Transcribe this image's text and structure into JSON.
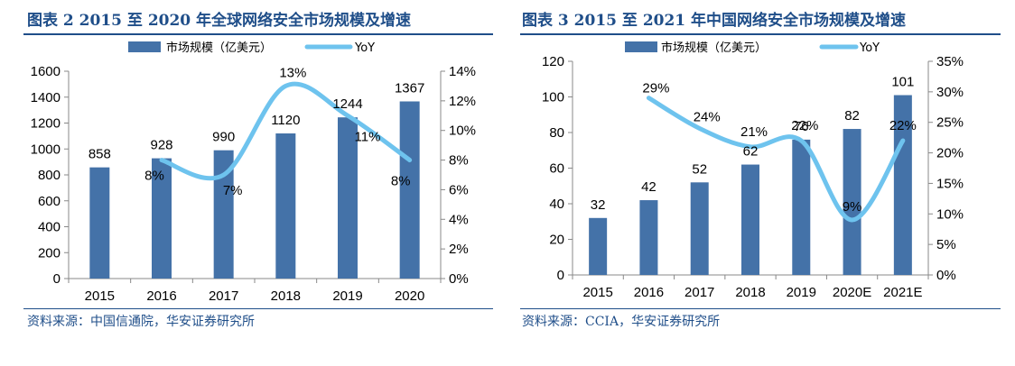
{
  "colors": {
    "bar": "#4472a8",
    "line": "#6ec3ee",
    "title": "#1f4e89"
  },
  "left": {
    "title": "图表 2 2015 至 2020 年全球网络安全市场规模及增速",
    "source": "资料来源：中国信通院，华安证券研究所"
  },
  "right": {
    "title": "图表 3 2015 至 2021 年中国网络安全市场规模及增速",
    "source": "资料来源：CCIA，华安证券研究所"
  },
  "chart_data": [
    {
      "type": "bar",
      "categories": [
        "2015",
        "2016",
        "2017",
        "2018",
        "2019",
        "2020"
      ],
      "series": [
        {
          "name": "市场规模（亿美元）",
          "type": "bar",
          "axis": "left",
          "values": [
            858,
            928,
            990,
            1120,
            1244,
            1367
          ],
          "labels": [
            "858",
            "928",
            "990",
            "1120",
            "1244",
            "1367"
          ]
        },
        {
          "name": "YoY",
          "type": "line",
          "axis": "right",
          "values": [
            null,
            8,
            7,
            13,
            11,
            8
          ],
          "labels": [
            "",
            "8%",
            "7%",
            "13%",
            "11%",
            "8%"
          ]
        }
      ],
      "ylim": [
        0,
        1600
      ],
      "yticks": [
        0,
        200,
        400,
        600,
        800,
        1000,
        1200,
        1400,
        1600
      ],
      "y2lim": [
        0,
        14
      ],
      "y2ticks": [
        "0%",
        "2%",
        "4%",
        "6%",
        "8%",
        "10%",
        "12%",
        "14%"
      ],
      "legend": "top-center",
      "grid": false
    },
    {
      "type": "bar",
      "categories": [
        "2015",
        "2016",
        "2017",
        "2018",
        "2019",
        "2020E",
        "2021E"
      ],
      "series": [
        {
          "name": "市场规模（亿美元）",
          "type": "bar",
          "axis": "left",
          "values": [
            32,
            42,
            52,
            62,
            76,
            82,
            101
          ],
          "labels": [
            "32",
            "42",
            "52",
            "62",
            "76",
            "82",
            "101"
          ]
        },
        {
          "name": "YoY",
          "type": "line",
          "axis": "right",
          "values": [
            null,
            29,
            24,
            21,
            22,
            9,
            22
          ],
          "labels": [
            "",
            "29%",
            "24%",
            "21%",
            "22%",
            "9%",
            "22%"
          ]
        }
      ],
      "ylim": [
        0,
        120
      ],
      "yticks": [
        0,
        20,
        40,
        60,
        80,
        100,
        120
      ],
      "y2lim": [
        0,
        35
      ],
      "y2ticks": [
        "0%",
        "5%",
        "10%",
        "15%",
        "20%",
        "25%",
        "30%",
        "35%"
      ],
      "legend": "top-center",
      "grid": false
    }
  ]
}
